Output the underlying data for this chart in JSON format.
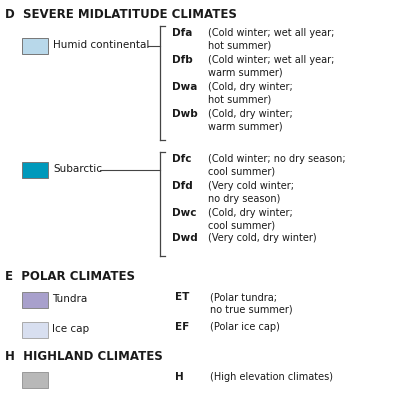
{
  "bg_color": "#ffffff",
  "title_D": "D  SEVERE MIDLATITUDE CLIMATES",
  "title_E": "E  POLAR CLIMATES",
  "title_H": "H  HIGHLAND CLIMATES",
  "humid_continental_color": "#b8d8ea",
  "subarctic_color": "#0099bb",
  "tundra_color": "#a8a0cc",
  "ice_cap_color": "#d8dff0",
  "highland_color": "#b8b8b8",
  "D_entries_group1": [
    {
      "code": "Dfa",
      "desc": "(Cold winter; wet all year;\nhot summer)"
    },
    {
      "code": "Dfb",
      "desc": "(Cold winter; wet all year;\nwarm summer)"
    },
    {
      "code": "Dwa",
      "desc": "(Cold, dry winter;\nhot summer)"
    },
    {
      "code": "Dwb",
      "desc": "(Cold, dry winter;\nwarm summer)"
    }
  ],
  "D_entries_group2": [
    {
      "code": "Dfc",
      "desc": "(Cold winter; no dry season;\ncool summer)"
    },
    {
      "code": "Dfd",
      "desc": "(Very cold winter;\nno dry season)"
    },
    {
      "code": "Dwc",
      "desc": "(Cold, dry winter;\ncool summer)"
    },
    {
      "code": "Dwd",
      "desc": "(Very cold, dry winter)"
    }
  ],
  "E_entries": [
    {
      "code": "ET",
      "label": "Tundra",
      "desc": "(Polar tundra;\nno true summer)"
    },
    {
      "code": "EF",
      "label": "Ice cap",
      "desc": "(Polar ice cap)"
    }
  ],
  "H_entry": {
    "code": "H",
    "desc": "(High elevation climates)"
  }
}
